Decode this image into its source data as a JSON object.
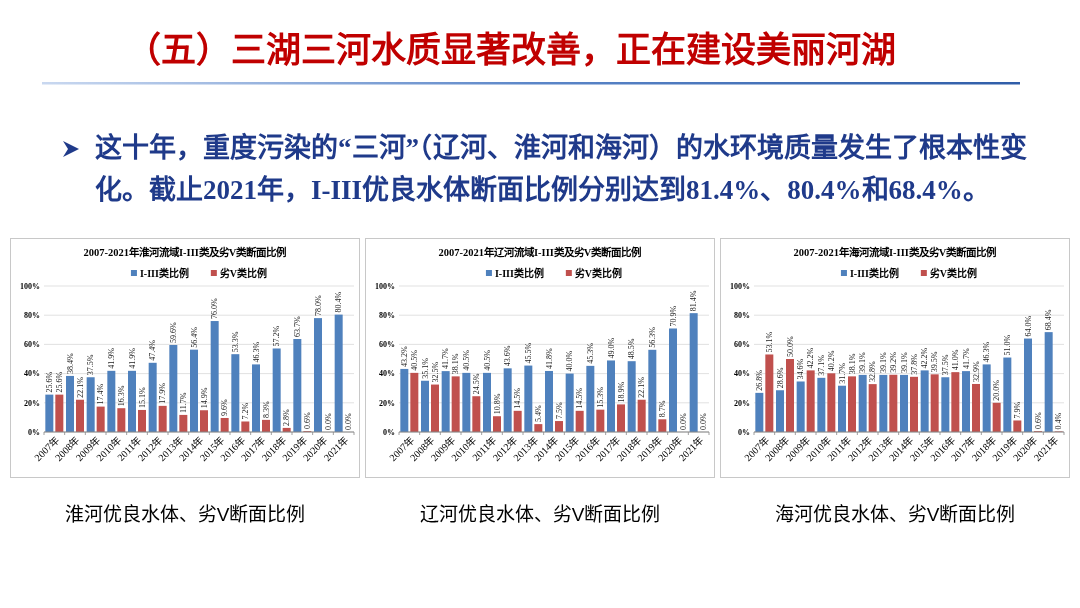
{
  "chart_data": [
    {
      "type": "other",
      "title": "（五）三湖三河水质显著改善，正在建设美丽河湖",
      "annotations": [
        "这十年，重度污染的“三河”（辽河、淮河和海河）的水环境质量发生了根本性变化。截止2021年，I-III优良水体断面比例分别达到81.4%、80.4%和68.4%。"
      ]
    },
    {
      "type": "bar",
      "title": "2007-2021年淮河流域I-III类及劣V类断面比例",
      "categories": [
        "2007年",
        "2008年",
        "2009年",
        "2010年",
        "2011年",
        "2012年",
        "2013年",
        "2014年",
        "2015年",
        "2016年",
        "2017年",
        "2018年",
        "2019年",
        "2020年",
        "2021年"
      ],
      "series": [
        {
          "name": "I-III类比例",
          "color": "#4f81bd",
          "values": [
            25.6,
            38.4,
            37.5,
            41.9,
            41.9,
            47.4,
            59.6,
            56.4,
            76.0,
            53.3,
            46.3,
            57.2,
            63.7,
            78.0,
            80.4
          ],
          "value_labels": [
            "25.6%",
            "38.4%",
            "37.5%",
            "41.9%",
            "41.9%",
            "47.4%",
            "59.6%",
            "56.4%",
            "76.0%",
            "53.3%",
            "46.3%",
            "57.2%",
            "63.7%",
            "78.0%",
            "80.4%"
          ]
        },
        {
          "name": "劣V类比例",
          "color": "#c0504d",
          "values": [
            25.6,
            22.1,
            17.4,
            16.3,
            15.1,
            17.9,
            11.7,
            14.9,
            9.6,
            7.2,
            8.3,
            2.8,
            0.6,
            0.0,
            0.0
          ],
          "value_labels": [
            "25.6%",
            "22.1%",
            "17.4%",
            "16.3%",
            "15.1%",
            "17.9%",
            "11.7%",
            "14.9%",
            "9.6%",
            "7.2%",
            "8.3%",
            "2.8%",
            "0.6%",
            "0.0%",
            "0.0%"
          ]
        }
      ],
      "ylim": [
        0,
        100
      ],
      "yticks": [
        {
          "value": 0,
          "label": "0%"
        },
        {
          "value": 20,
          "label": "20%"
        },
        {
          "value": 40,
          "label": "40%"
        },
        {
          "value": 60,
          "label": "60%"
        },
        {
          "value": 80,
          "label": "80%"
        },
        {
          "value": 100,
          "label": "100%"
        }
      ],
      "grid": "y",
      "legend": "top",
      "annotations": [
        "淮河优良水体、劣V断面比例"
      ]
    },
    {
      "type": "bar",
      "title": "2007-2021年辽河流域I-III类及劣V类断面比例",
      "categories": [
        "2007年",
        "2008年",
        "2009年",
        "2010年",
        "2011年",
        "2012年",
        "2013年",
        "2014年",
        "2015年",
        "2016年",
        "2017年",
        "2018年",
        "2019年",
        "2020年",
        "2021年"
      ],
      "series": [
        {
          "name": "I-III类比例",
          "color": "#4f81bd",
          "values": [
            43.2,
            35.1,
            41.7,
            40.5,
            40.5,
            43.6,
            45.5,
            41.8,
            40.0,
            45.3,
            49.0,
            48.5,
            56.3,
            70.9,
            81.4
          ],
          "value_labels": [
            "43.2%",
            "35.1%",
            "41.7%",
            "40.5%",
            "40.5%",
            "43.6%",
            "45.5%",
            "41.8%",
            "40.0%",
            "45.3%",
            "49.0%",
            "48.5%",
            "56.3%",
            "70.9%",
            "81.4%"
          ]
        },
        {
          "name": "劣V类比例",
          "color": "#c0504d",
          "values": [
            40.5,
            32.5,
            38.1,
            24.5,
            10.8,
            14.5,
            5.4,
            7.5,
            14.5,
            15.3,
            18.9,
            22.1,
            8.7,
            0.0,
            0.0
          ],
          "value_labels": [
            "40.5%",
            "32.5%",
            "38.1%",
            "24.5%",
            "10.8%",
            "14.5%",
            "5.4%",
            "7.5%",
            "14.5%",
            "15.3%",
            "18.9%",
            "22.1%",
            "8.7%",
            "0.0%",
            "0.0%"
          ]
        }
      ],
      "ylim": [
        0,
        100
      ],
      "yticks": [
        {
          "value": 0,
          "label": "0%"
        },
        {
          "value": 20,
          "label": "20%"
        },
        {
          "value": 40,
          "label": "40%"
        },
        {
          "value": 60,
          "label": "60%"
        },
        {
          "value": 80,
          "label": "80%"
        },
        {
          "value": 100,
          "label": "100%"
        }
      ],
      "grid": "y",
      "legend": "top",
      "annotations": [
        "辽河优良水体、劣V断面比例"
      ]
    },
    {
      "type": "bar",
      "title": "2007-2021年海河流域I-III类及劣V类断面比例",
      "categories": [
        "2007年",
        "2008年",
        "2009年",
        "2010年",
        "2011年",
        "2012年",
        "2013年",
        "2014年",
        "2015年",
        "2016年",
        "2017年",
        "2018年",
        "2019年",
        "2020年",
        "2021年"
      ],
      "series": [
        {
          "name": "I-III类比例",
          "color": "#4f81bd",
          "values": [
            26.8,
            28.6,
            34.6,
            37.1,
            31.7,
            39.1,
            39.1,
            39.1,
            42.2,
            37.5,
            41.7,
            46.3,
            51.0,
            64.0,
            68.4
          ],
          "value_labels": [
            "26.8%",
            "28.6%",
            "34.6%",
            "37.1%",
            "31.7%",
            "39.1%",
            "39.1%",
            "39.1%",
            "42.2%",
            "37.5%",
            "41.7%",
            "46.3%",
            "51.0%",
            "64.0%",
            "68.4%"
          ]
        },
        {
          "name": "劣V类比例",
          "color": "#c0504d",
          "values": [
            53.1,
            50.0,
            42.2,
            40.2,
            38.1,
            32.8,
            39.2,
            37.8,
            39.5,
            41.0,
            32.9,
            20.0,
            7.9,
            0.6,
            0.4
          ],
          "value_labels": [
            "53.1%",
            "50.0%",
            "42.2%",
            "40.2%",
            "38.1%",
            "32.8%",
            "39.2%",
            "37.8%",
            "39.5%",
            "41.0%",
            "32.9%",
            "20.0%",
            "7.9%",
            "0.6%",
            "0.4%"
          ]
        }
      ],
      "ylim": [
        0,
        100
      ],
      "yticks": [
        {
          "value": 0,
          "label": "0%"
        },
        {
          "value": 20,
          "label": "20%"
        },
        {
          "value": 40,
          "label": "40%"
        },
        {
          "value": 60,
          "label": "60%"
        },
        {
          "value": 80,
          "label": "80%"
        },
        {
          "value": 100,
          "label": "100%"
        }
      ],
      "grid": "y",
      "legend": "top",
      "annotations": [
        "海河优良水体、劣V断面比例"
      ]
    }
  ]
}
